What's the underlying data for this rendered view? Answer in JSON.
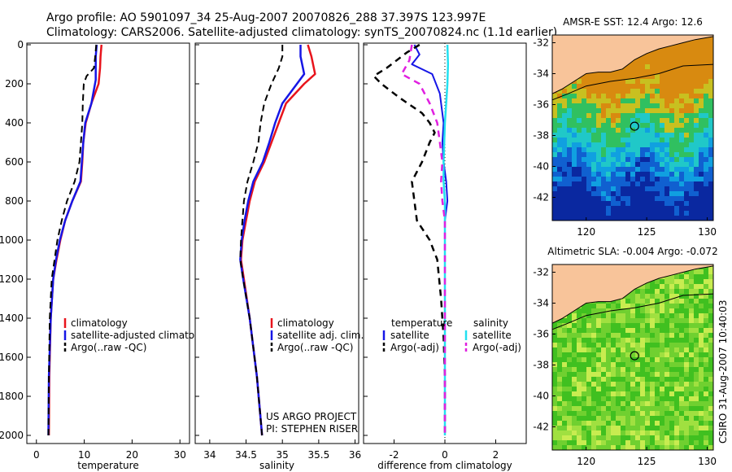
{
  "header": {
    "line1": "Argo profile: AO 5901097_34 25-Aug-2007 20070826_288 37.397S 123.997E",
    "line2": "Climatology: CARS2006. Satellite-adjusted climatology: synTS_20070824.nc (1.1d earlier)"
  },
  "credits": {
    "project": "US ARGO PROJECT",
    "pi": "PI: STEPHEN RISER"
  },
  "side_stamp": "CSIRO 31-Aug-2007 10:40:03",
  "colors": {
    "climatology": "#e8141c",
    "satellite": "#1616e6",
    "argo": "#000000",
    "sat_salinity": "#22e0f0",
    "argo_salinity": "#e020e0",
    "land": "#f8c49a"
  },
  "chart_data": [
    {
      "type": "line",
      "xlabel": "temperature",
      "ylim": [
        2000,
        0
      ],
      "xlim": [
        -2,
        32
      ],
      "xticks": [
        "0",
        "10",
        "20",
        "30"
      ],
      "yticks": [
        "0",
        "200",
        "400",
        "600",
        "800",
        "1000",
        "1200",
        "1400",
        "1600",
        "1800",
        "2000"
      ],
      "legend": [
        "climatology",
        "satellite-adjusted climatology",
        "Argo(..raw -QC)"
      ],
      "series": [
        {
          "name": "climatology",
          "points": [
            [
              13.6,
              0
            ],
            [
              13.4,
              60
            ],
            [
              13.3,
              120
            ],
            [
              13.0,
              200
            ],
            [
              11.5,
              300
            ],
            [
              10.3,
              400
            ],
            [
              9.8,
              500
            ],
            [
              9.6,
              600
            ],
            [
              9.3,
              700
            ],
            [
              7.5,
              800
            ],
            [
              6.0,
              900
            ],
            [
              5.0,
              1000
            ],
            [
              4.2,
              1100
            ],
            [
              3.5,
              1200
            ],
            [
              3.0,
              1400
            ],
            [
              2.7,
              1700
            ],
            [
              2.6,
              2000
            ]
          ]
        },
        {
          "name": "satellite-adjusted climatology",
          "points": [
            [
              12.6,
              0
            ],
            [
              12.4,
              60
            ],
            [
              12.4,
              120
            ],
            [
              12.4,
              180
            ],
            [
              11.5,
              300
            ],
            [
              10.2,
              400
            ],
            [
              9.8,
              500
            ],
            [
              9.5,
              600
            ],
            [
              9.2,
              700
            ],
            [
              7.5,
              800
            ],
            [
              6.0,
              900
            ],
            [
              4.9,
              1000
            ],
            [
              4.1,
              1100
            ],
            [
              3.5,
              1200
            ],
            [
              3.0,
              1400
            ],
            [
              2.6,
              1700
            ],
            [
              2.5,
              2000
            ]
          ]
        },
        {
          "name": "Argo(..raw -QC)",
          "points": [
            [
              12.5,
              0
            ],
            [
              12.3,
              60
            ],
            [
              12.0,
              120
            ],
            [
              10.5,
              160
            ],
            [
              9.9,
              200
            ],
            [
              9.7,
              300
            ],
            [
              9.6,
              400
            ],
            [
              9.3,
              500
            ],
            [
              9.0,
              600
            ],
            [
              8.0,
              700
            ],
            [
              6.4,
              800
            ],
            [
              5.3,
              900
            ],
            [
              4.4,
              1000
            ],
            [
              3.8,
              1100
            ],
            [
              3.2,
              1200
            ],
            [
              2.8,
              1400
            ],
            [
              2.6,
              1700
            ],
            [
              2.5,
              2000
            ]
          ]
        }
      ]
    },
    {
      "type": "line",
      "xlabel": "salinity",
      "ylim": [
        2000,
        0
      ],
      "xlim": [
        33.8,
        36.05
      ],
      "xticks": [
        "34",
        "34.5",
        "35",
        "35.5",
        "36"
      ],
      "legend": [
        "climatology",
        "satellite adj. clim.",
        "Argo(..raw -QC)"
      ],
      "series": [
        {
          "name": "climatology",
          "points": [
            [
              35.35,
              0
            ],
            [
              35.4,
              60
            ],
            [
              35.45,
              150
            ],
            [
              35.3,
              200
            ],
            [
              35.05,
              300
            ],
            [
              34.95,
              400
            ],
            [
              34.85,
              500
            ],
            [
              34.75,
              600
            ],
            [
              34.62,
              700
            ],
            [
              34.55,
              800
            ],
            [
              34.5,
              900
            ],
            [
              34.45,
              1000
            ],
            [
              34.43,
              1100
            ],
            [
              34.47,
              1200
            ],
            [
              34.55,
              1400
            ],
            [
              34.65,
              1700
            ],
            [
              34.72,
              2000
            ]
          ]
        },
        {
          "name": "satellite adj. clim.",
          "points": [
            [
              35.25,
              0
            ],
            [
              35.25,
              60
            ],
            [
              35.3,
              150
            ],
            [
              35.2,
              200
            ],
            [
              35.0,
              300
            ],
            [
              34.9,
              400
            ],
            [
              34.82,
              500
            ],
            [
              34.73,
              600
            ],
            [
              34.6,
              700
            ],
            [
              34.53,
              800
            ],
            [
              34.48,
              900
            ],
            [
              34.44,
              1000
            ],
            [
              34.42,
              1100
            ],
            [
              34.46,
              1200
            ],
            [
              34.55,
              1400
            ],
            [
              34.65,
              1700
            ],
            [
              34.72,
              2000
            ]
          ]
        },
        {
          "name": "Argo(..raw -QC)",
          "points": [
            [
              35.0,
              0
            ],
            [
              35.0,
              60
            ],
            [
              34.95,
              120
            ],
            [
              34.85,
              200
            ],
            [
              34.75,
              300
            ],
            [
              34.7,
              400
            ],
            [
              34.67,
              500
            ],
            [
              34.6,
              600
            ],
            [
              34.52,
              700
            ],
            [
              34.47,
              800
            ],
            [
              34.45,
              900
            ],
            [
              34.43,
              1000
            ],
            [
              34.42,
              1100
            ],
            [
              34.46,
              1200
            ],
            [
              34.55,
              1400
            ],
            [
              34.65,
              1700
            ],
            [
              34.72,
              2000
            ]
          ]
        }
      ]
    },
    {
      "type": "line",
      "xlabel": "difference from climatology",
      "ylim": [
        2000,
        0
      ],
      "xlim": [
        -3.2,
        3.2
      ],
      "xticks": [
        "-2",
        "0",
        "2"
      ],
      "legend": [
        "temperature",
        "satellite",
        "Argo(-adj)",
        "salinity",
        "satellite",
        "Argo(-adj)"
      ],
      "series": [
        {
          "name": "temperature satellite",
          "points": [
            [
              -1.2,
              0
            ],
            [
              -1.0,
              50
            ],
            [
              -1.3,
              100
            ],
            [
              -0.5,
              150
            ],
            [
              -0.2,
              250
            ],
            [
              -0.05,
              400
            ],
            [
              -0.1,
              500
            ],
            [
              -0.05,
              600
            ],
            [
              0.05,
              700
            ],
            [
              0.1,
              800
            ],
            [
              0.0,
              900
            ],
            [
              0.0,
              1000
            ],
            [
              0.0,
              1200
            ],
            [
              0.0,
              1500
            ],
            [
              0.0,
              1800
            ],
            [
              0.0,
              2000
            ]
          ]
        },
        {
          "name": "temperature Argo(-adj)",
          "points": [
            [
              -1.0,
              0
            ],
            [
              -1.5,
              40
            ],
            [
              -2.3,
              120
            ],
            [
              -2.8,
              160
            ],
            [
              -2.5,
              200
            ],
            [
              -1.8,
              270
            ],
            [
              -0.9,
              350
            ],
            [
              -0.6,
              400
            ],
            [
              -0.4,
              450
            ],
            [
              -0.6,
              500
            ],
            [
              -0.9,
              600
            ],
            [
              -1.3,
              700
            ],
            [
              -1.2,
              800
            ],
            [
              -1.1,
              900
            ],
            [
              -0.6,
              1000
            ],
            [
              -0.3,
              1100
            ],
            [
              -0.15,
              1300
            ],
            [
              -0.05,
              1500
            ],
            [
              0.0,
              1700
            ],
            [
              0.0,
              2000
            ]
          ]
        },
        {
          "name": "salinity satellite",
          "points": [
            [
              0.1,
              0
            ],
            [
              0.12,
              100
            ],
            [
              0.1,
              200
            ],
            [
              0.05,
              300
            ],
            [
              0.0,
              400
            ],
            [
              -0.05,
              600
            ],
            [
              -0.05,
              700
            ],
            [
              0.0,
              800
            ],
            [
              0.0,
              1000
            ],
            [
              0.0,
              1500
            ],
            [
              0.0,
              2000
            ]
          ]
        },
        {
          "name": "salinity Argo(-adj)",
          "points": [
            [
              -1.3,
              0
            ],
            [
              -1.4,
              80
            ],
            [
              -1.7,
              150
            ],
            [
              -1.0,
              200
            ],
            [
              -0.6,
              300
            ],
            [
              -0.3,
              400
            ],
            [
              -0.2,
              500
            ],
            [
              -0.1,
              600
            ],
            [
              -0.15,
              700
            ],
            [
              -0.1,
              800
            ],
            [
              0.0,
              900
            ],
            [
              0.0,
              1200
            ],
            [
              0.0,
              1500
            ],
            [
              0.0,
              2000
            ]
          ]
        }
      ]
    },
    {
      "type": "heatmap",
      "title": "AMSR-E SST: 12.4 Argo: 12.6",
      "xticks": [
        "120",
        "125",
        "130"
      ],
      "yticks": [
        "-32",
        "-34",
        "-36",
        "-38",
        "-40",
        "-42"
      ],
      "xlim": [
        117.2,
        130.5
      ],
      "ylim": [
        -43.5,
        -31.5
      ],
      "marker": [
        124.0,
        -37.4
      ]
    },
    {
      "type": "heatmap",
      "title": "Altimetric SLA: -0.004 Argo: -0.072",
      "xticks": [
        "120",
        "125",
        "130"
      ],
      "yticks": [
        "-32",
        "-34",
        "-36",
        "-38",
        "-40",
        "-42"
      ],
      "xlim": [
        117.2,
        130.5
      ],
      "ylim": [
        -43.5,
        -31.5
      ],
      "marker": [
        124.0,
        -37.4
      ]
    }
  ]
}
